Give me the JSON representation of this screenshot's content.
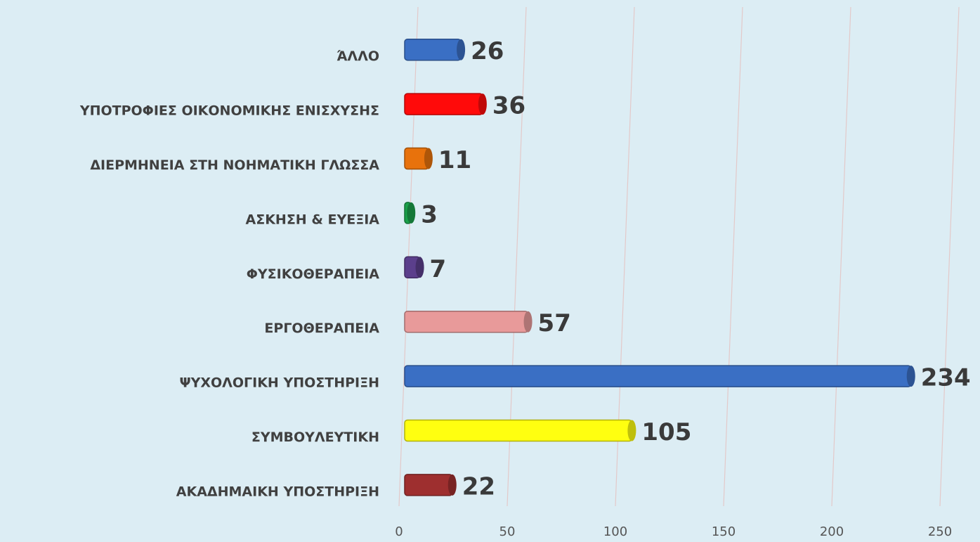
{
  "chart_data": {
    "type": "bar",
    "orientation": "horizontal",
    "categories": [
      "ΆΛΛΟ",
      "ΥΠΟΤΡΟΦΙΕΣ ΟΙΚΟΝΟΜΙΚΗΣ ΕΝΙΣΧΥΣΗΣ",
      "ΔΙΕΡΜΗΝΕΙΑ ΣΤΗ ΝΟΗΜΑΤΙΚΗ ΓΛΩΣΣΑ",
      "ΑΣΚΗΣΗ & ΕΥΕΞΙΑ",
      "ΦΥΣΙΚΟΘΕΡΑΠΕΙΑ",
      "ΕΡΓΟΘΕΡΑΠΕΙΑ",
      "ΨΥΧΟΛΟΓΙΚΗ ΥΠΟΣΤΗΡΙΞΗ",
      "ΣΥΜΒΟΥΛΕΥΤΙΚΗ",
      "ΑΚΑΔΗΜΑΙΚΗ ΥΠΟΣΤΗΡΙΞΗ"
    ],
    "values": [
      26,
      36,
      11,
      3,
      7,
      57,
      234,
      105,
      22
    ],
    "colors": [
      "#3a6fc4",
      "#ff0a0a",
      "#e8720c",
      "#1aa04a",
      "#5b3f8c",
      "#e89a9a",
      "#3a6fc4",
      "#ffff10",
      "#9e2f2f"
    ],
    "xlim": [
      0,
      250
    ],
    "xticks": [
      0,
      50,
      100,
      150,
      200,
      250
    ],
    "grid": true
  }
}
